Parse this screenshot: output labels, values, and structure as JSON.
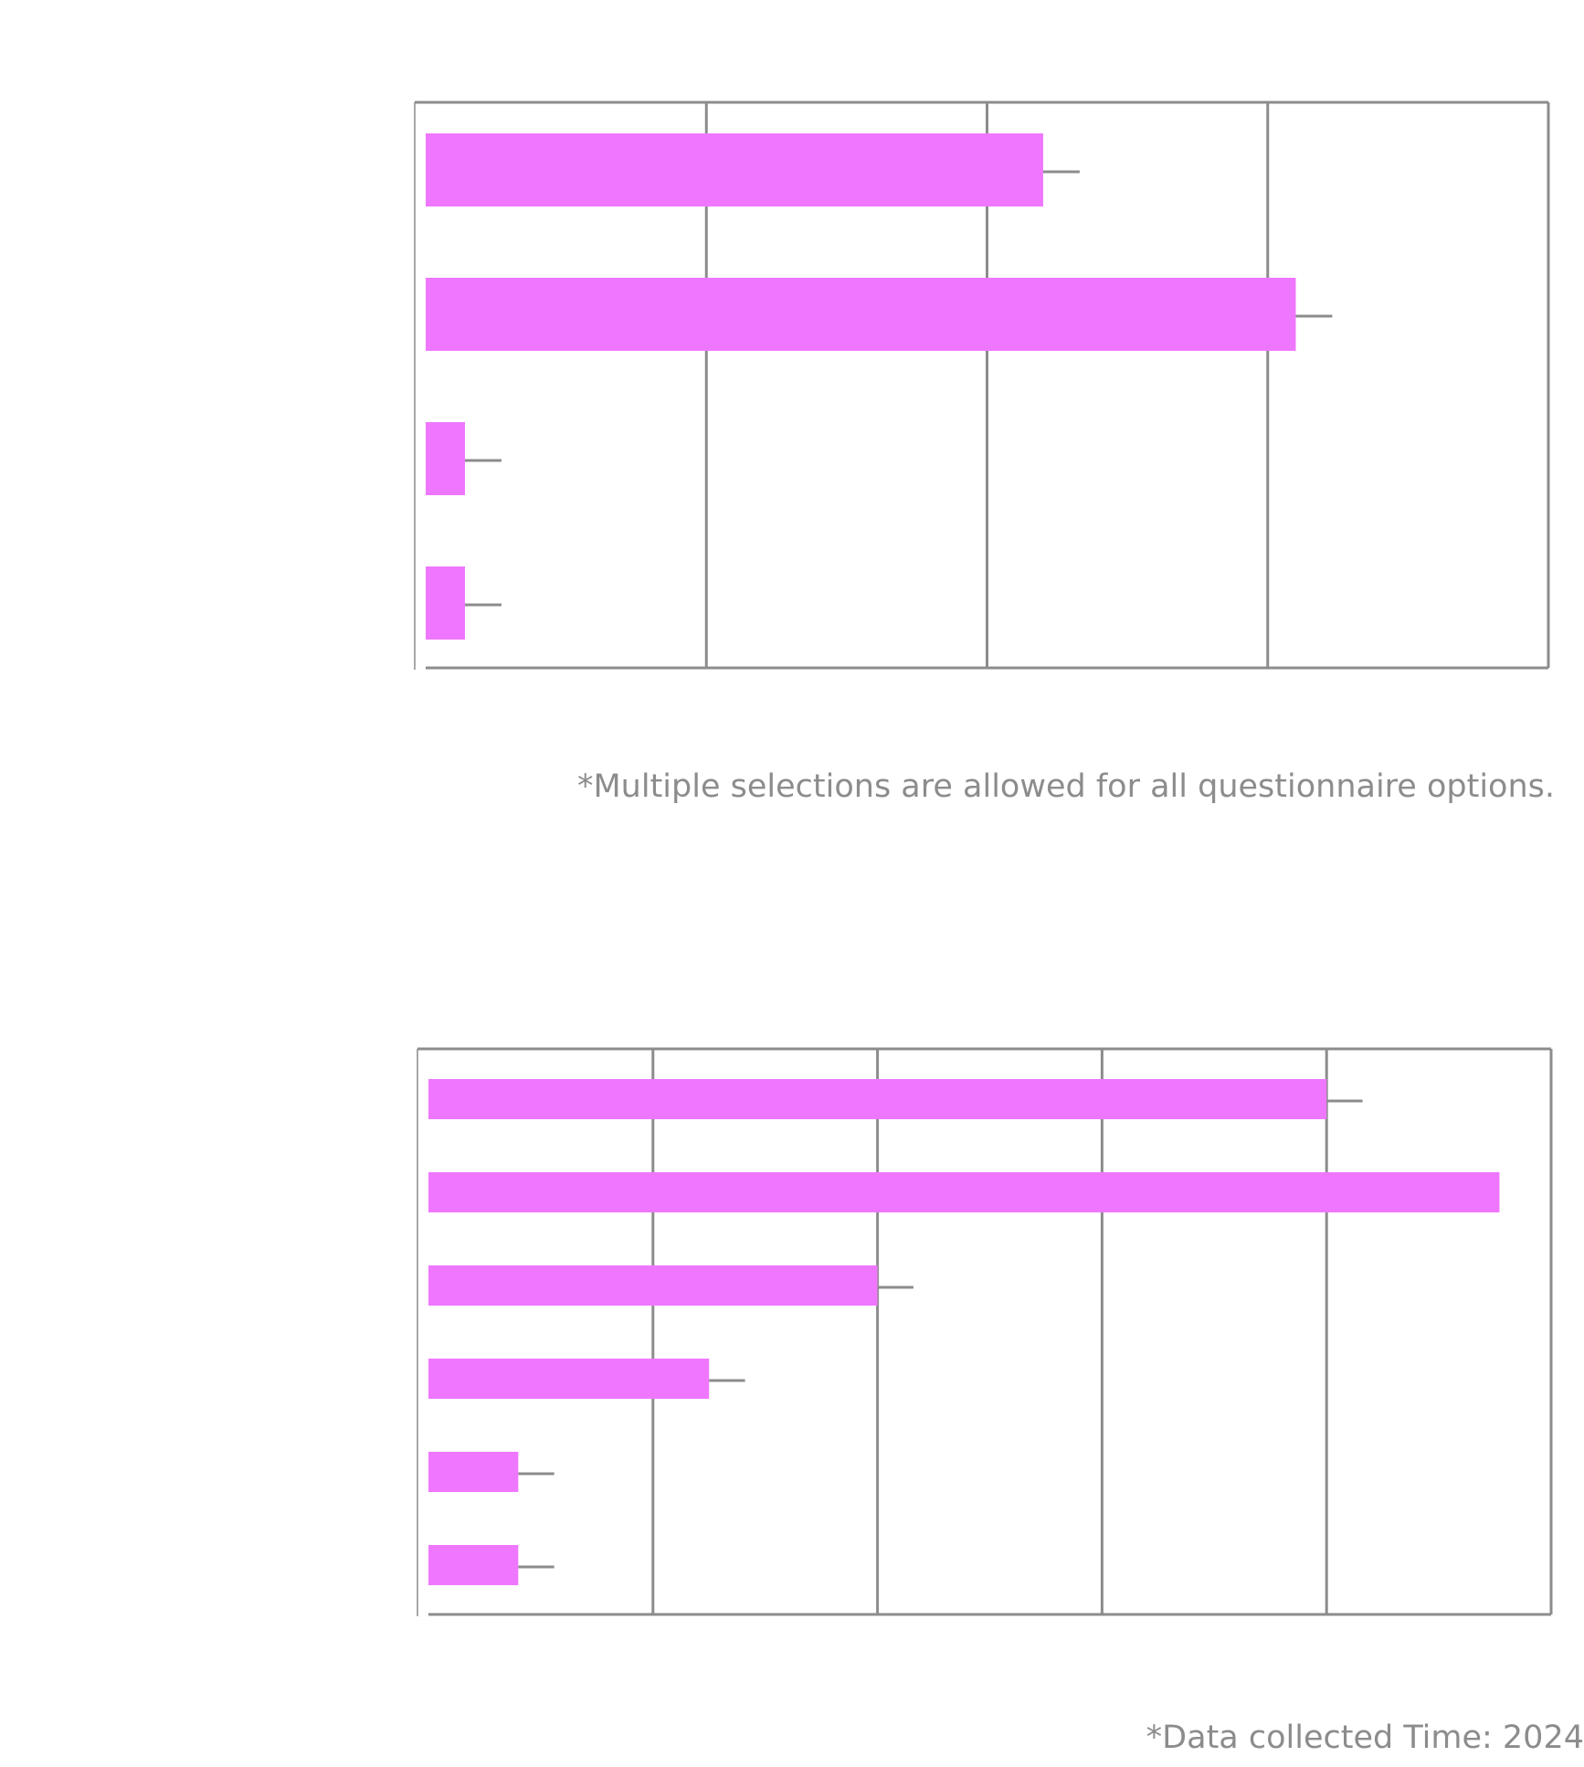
{
  "chart_data": [
    {
      "type": "bar",
      "orientation": "horizontal",
      "categories": [
        "",
        "",
        "",
        ""
      ],
      "values": [
        2.2,
        3.1,
        0.14,
        0.14
      ],
      "error": [
        0.13,
        0.13,
        0.13,
        0.13
      ],
      "xlim": [
        0,
        4
      ],
      "xlabel": "",
      "ylabel": "",
      "grid": true,
      "bar_color": "#ef77ff",
      "grid_color": "#8c8c8c"
    },
    {
      "type": "bar",
      "orientation": "horizontal",
      "categories": [
        "",
        "",
        "",
        "",
        "",
        ""
      ],
      "values": [
        4.0,
        4.77,
        2.0,
        1.25,
        0.4,
        0.4
      ],
      "error": [
        0.16,
        0,
        0.16,
        0.16,
        0.16,
        0.16
      ],
      "xlim": [
        0,
        5
      ],
      "xlabel": "",
      "ylabel": "",
      "grid": true,
      "bar_color": "#ef77ff",
      "grid_color": "#8c8c8c"
    }
  ],
  "footnotes": {
    "multiple": "*Multiple selections are allowed for all questionnaire options.",
    "collected": "*Data collected Time:  2024"
  },
  "colors": {
    "bar": "#ef77ff",
    "grid": "#8c8c8c",
    "text": "#8c8c8c"
  }
}
